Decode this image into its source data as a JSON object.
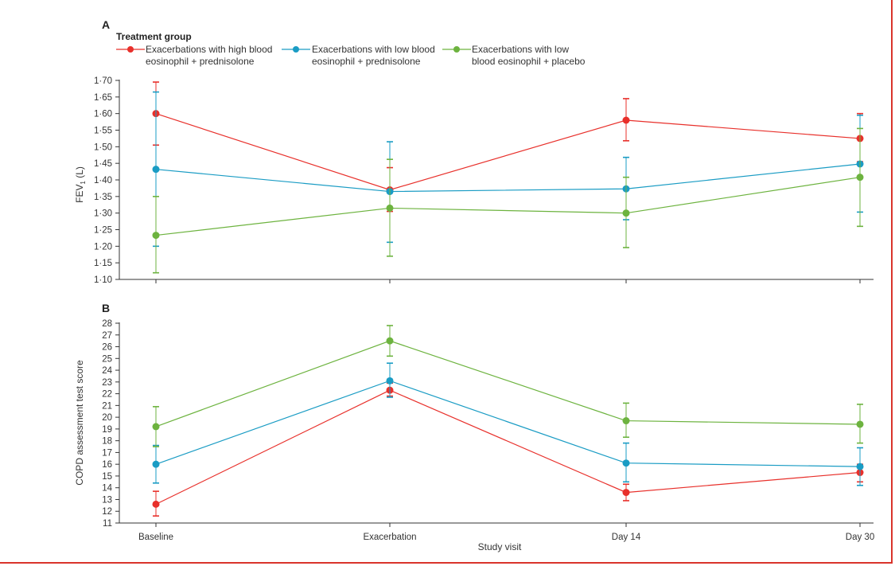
{
  "legend": {
    "title": "Treatment group",
    "items": [
      {
        "line1": "Exacerbations with high blood",
        "line2": "eosinophil + prednisolone",
        "color": "#e8302b"
      },
      {
        "line1": "Exacerbations with low blood",
        "line2": "eosinophil + prednisolone",
        "color": "#1a9cc4"
      },
      {
        "line1": "Exacerbations with low",
        "line2": "blood eosinophil + placebo",
        "color": "#6db33f"
      }
    ]
  },
  "chart_data": [
    {
      "panel": "A",
      "type": "line",
      "categories": [
        "Baseline",
        "Exacerbation",
        "Day 14",
        "Day 30"
      ],
      "ylabel_main": "FEV",
      "ylabel_sub": "1",
      "ylabel_tail": " (L)",
      "ylim": [
        1.1,
        1.7
      ],
      "yticks": [
        "1·10",
        "1·15",
        "1·20",
        "1·25",
        "1·30",
        "1·35",
        "1·40",
        "1·45",
        "1·50",
        "1·55",
        "1·60",
        "1·65",
        "1·70"
      ],
      "series": [
        {
          "name": "Exacerbations with high blood eosinophil + prednisolone",
          "color": "#e8302b",
          "values": [
            1.6,
            1.37,
            1.58,
            1.525
          ],
          "lower": [
            1.505,
            1.305,
            1.518,
            1.455
          ],
          "upper": [
            1.695,
            1.437,
            1.645,
            1.6
          ]
        },
        {
          "name": "Exacerbations with low blood eosinophil + prednisolone",
          "color": "#1a9cc4",
          "values": [
            1.432,
            1.365,
            1.373,
            1.448
          ],
          "lower": [
            1.2,
            1.212,
            1.28,
            1.303
          ],
          "upper": [
            1.665,
            1.515,
            1.468,
            1.595
          ]
        },
        {
          "name": "Exacerbations with low blood eosinophil + placebo",
          "color": "#6db33f",
          "values": [
            1.233,
            1.315,
            1.3,
            1.408
          ],
          "lower": [
            1.12,
            1.17,
            1.196,
            1.26
          ],
          "upper": [
            1.35,
            1.462,
            1.408,
            1.555
          ]
        }
      ]
    },
    {
      "panel": "B",
      "type": "line",
      "categories": [
        "Baseline",
        "Exacerbation",
        "Day 14",
        "Day 30"
      ],
      "xlabel": "Study visit",
      "ylabel": "COPD assessment test score",
      "ylim": [
        11,
        28
      ],
      "yticks": [
        "11",
        "12",
        "13",
        "14",
        "15",
        "16",
        "17",
        "18",
        "19",
        "20",
        "21",
        "22",
        "23",
        "24",
        "25",
        "26",
        "27",
        "28"
      ],
      "series": [
        {
          "name": "Exacerbations with high blood eosinophil + prednisolone",
          "color": "#e8302b",
          "values": [
            12.6,
            22.3,
            13.6,
            15.3
          ],
          "lower": [
            11.6,
            21.8,
            12.9,
            14.5
          ],
          "upper": [
            13.7,
            22.9,
            14.3,
            16.0
          ]
        },
        {
          "name": "Exacerbations with low blood eosinophil + prednisolone",
          "color": "#1a9cc4",
          "values": [
            16.0,
            23.1,
            16.1,
            15.8
          ],
          "lower": [
            14.4,
            21.7,
            14.5,
            14.2
          ],
          "upper": [
            17.6,
            24.6,
            17.8,
            17.4
          ]
        },
        {
          "name": "Exacerbations with low blood eosinophil + placebo",
          "color": "#6db33f",
          "values": [
            19.2,
            26.5,
            19.7,
            19.4
          ],
          "lower": [
            17.5,
            25.2,
            18.3,
            17.8
          ],
          "upper": [
            20.9,
            27.8,
            21.2,
            21.1
          ]
        }
      ]
    }
  ]
}
